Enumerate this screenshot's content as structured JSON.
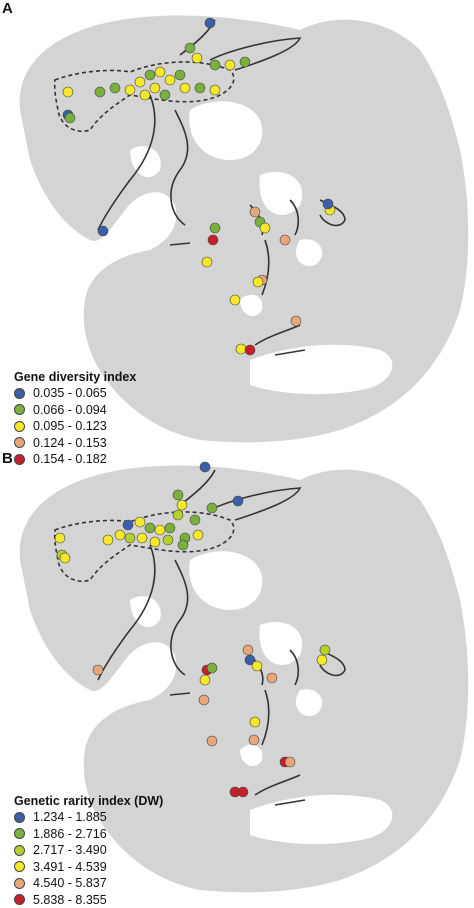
{
  "panels": [
    {
      "letter": "A",
      "legend_title": "Gene diversity index",
      "classes": [
        {
          "label": "0.035 - 0.065",
          "color": "#3b5ea8"
        },
        {
          "label": "0.066 - 0.094",
          "color": "#7ab03c"
        },
        {
          "label": "0.095 - 0.123",
          "color": "#f5e82a"
        },
        {
          "label": "0.124 - 0.153",
          "color": "#e8a77a"
        },
        {
          "label": "0.154 - 0.182",
          "color": "#c8202a"
        }
      ]
    },
    {
      "letter": "B",
      "legend_title": "Genetic rarity index (DW)",
      "classes": [
        {
          "label": "1.234 - 1.885",
          "color": "#3b5ea8"
        },
        {
          "label": "1.886 - 2.716",
          "color": "#7ab03c"
        },
        {
          "label": "2.717 - 3.490",
          "color": "#b7cf2e"
        },
        {
          "label": "3.491 - 4.539",
          "color": "#f5e82a"
        },
        {
          "label": "4.540 - 5.837",
          "color": "#e8a77a"
        },
        {
          "label": "5.838 - 8.355",
          "color": "#c8202a"
        }
      ]
    }
  ],
  "map_colors": {
    "land": "#d4d4d4",
    "ocean": "#ffffff",
    "range_line": "#333333"
  }
}
